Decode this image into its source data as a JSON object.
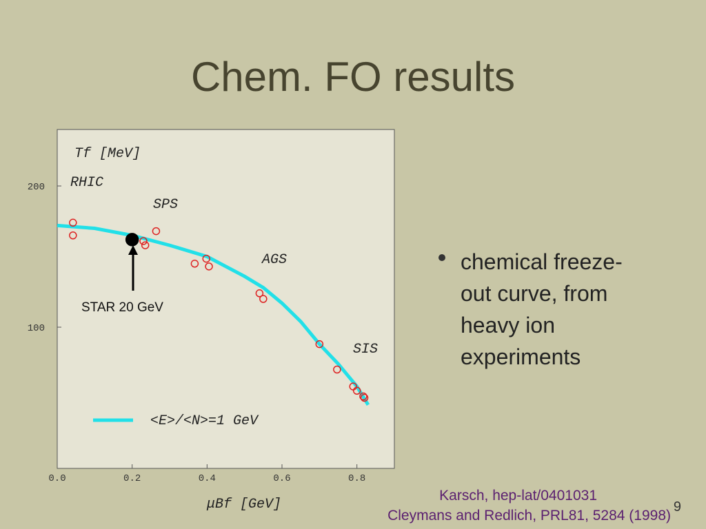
{
  "slide": {
    "title": "Chem. FO results",
    "bullet": [
      "chemical freeze-",
      "out curve, from",
      "heavy ion",
      "experiments"
    ],
    "citation": [
      "Karsch, hep-lat/0401031",
      "Cleymans and Redlich, PRL81, 5284 (1998)"
    ],
    "page_number": "9"
  },
  "chart_data": {
    "type": "scatter",
    "y_label": "Tf [MeV]",
    "x_label": "μBf [GeV]",
    "xlim": [
      0,
      0.9
    ],
    "ylim": [
      0,
      240
    ],
    "xticks": [
      {
        "value": 0,
        "label": "0.0"
      },
      0.2,
      0.4,
      0.6,
      0.8
    ],
    "yticks": [
      100,
      200
    ],
    "annotations": [
      "RHIC",
      "SPS",
      "AGS",
      "SIS",
      "STAR 20 GeV"
    ],
    "series": [
      {
        "name": "<E>/<N>=1 GeV",
        "type": "line",
        "color": "#22e0e8",
        "x": [
          0,
          0.1,
          0.2,
          0.3,
          0.4,
          0.5,
          0.55,
          0.6,
          0.65,
          0.7,
          0.75,
          0.8,
          0.83
        ],
        "values": [
          172,
          170,
          165,
          158,
          150,
          136,
          128,
          117,
          104,
          88,
          74,
          58,
          45
        ]
      },
      {
        "type": "scatter",
        "color": "#dd2222",
        "x": [
          0.042,
          0.042,
          0.23,
          0.235,
          0.264,
          0.367,
          0.398,
          0.405,
          0.54,
          0.55,
          0.7,
          0.747,
          0.79,
          0.8,
          0.817,
          0.82
        ],
        "values": [
          174,
          165,
          161,
          158,
          168,
          145,
          148.5,
          143,
          124,
          120,
          88,
          70,
          58,
          55,
          51,
          50
        ]
      },
      {
        "type": "scatter",
        "color": "#000000",
        "x": [
          0.2
        ],
        "values": [
          162
        ]
      }
    ]
  }
}
